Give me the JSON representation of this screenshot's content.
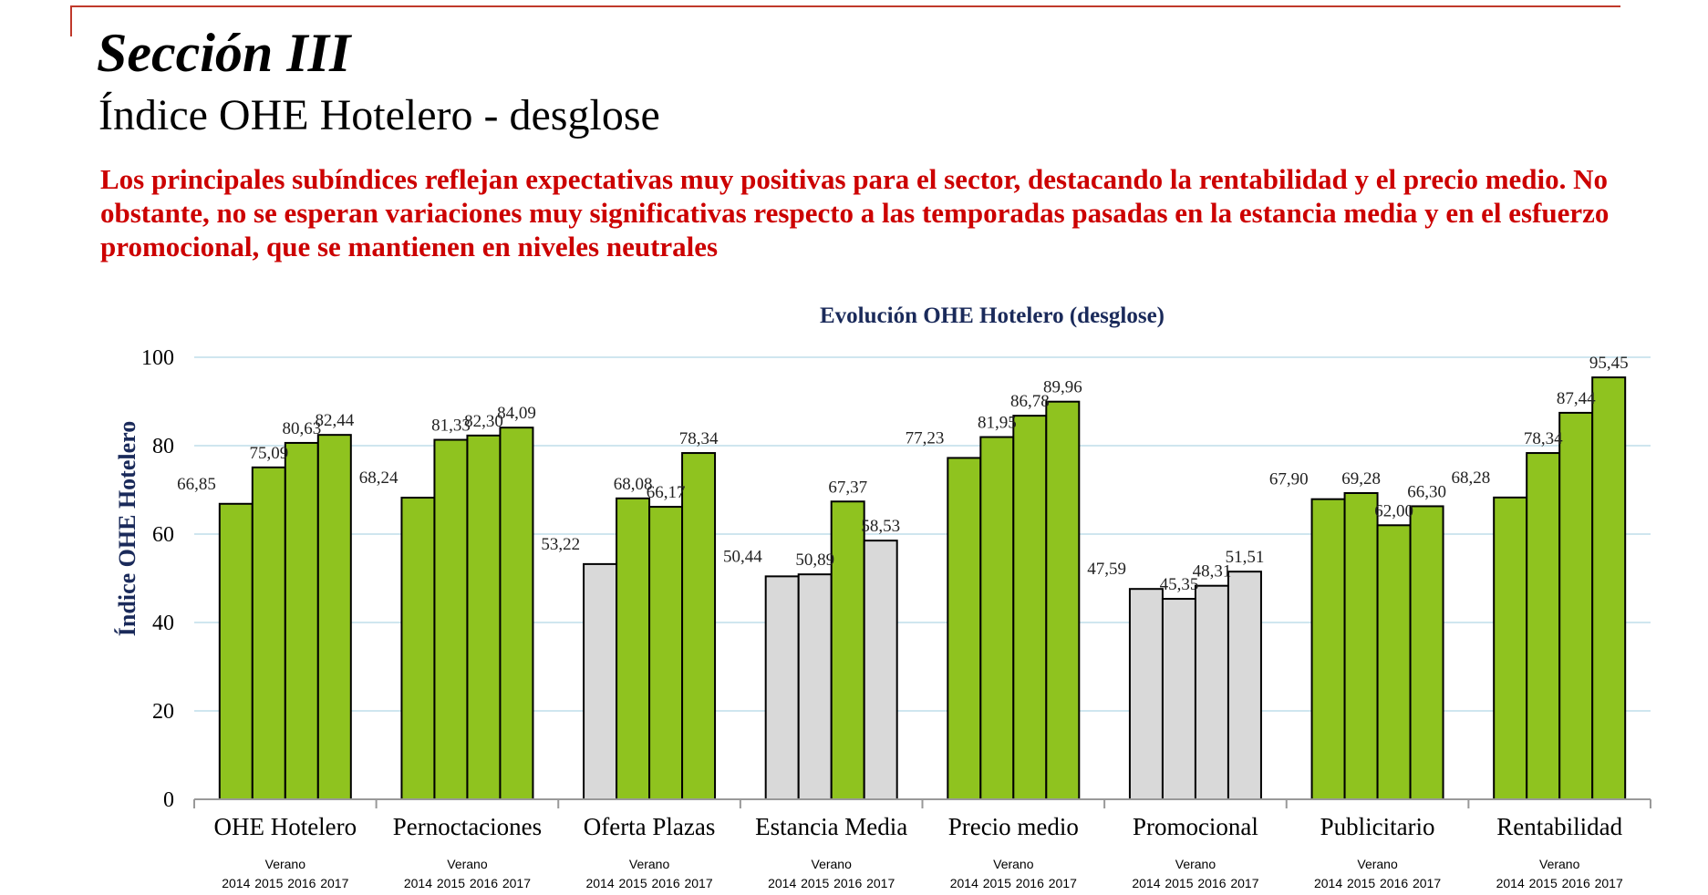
{
  "header": {
    "section": "Sección III",
    "subtitle": "Índice OHE Hotelero - desglose",
    "lead": "Los principales subíndices reflejan expectativas muy positivas para el sector, destacando la rentabilidad y el precio medio. No obstante, no se esperan variaciones muy significativas respecto a las temporadas pasadas en la estancia media y en el esfuerzo promocional, que se mantienen en niveles neutrales"
  },
  "chart_data": {
    "type": "bar",
    "title": "Evolución OHE Hotelero (desglose)",
    "ylabel": "Índice OHE Hotelero",
    "ylim": [
      0,
      100
    ],
    "yticks": [
      0,
      20,
      40,
      60,
      80,
      100
    ],
    "grid": true,
    "categories": [
      "OHE Hotelero",
      "Pernoctaciones",
      "Oferta Plazas",
      "Estancia Media",
      "Precio medio",
      "Promocional",
      "Publicitario",
      "Rentabilidad"
    ],
    "period_label": "Verano",
    "years": [
      "2014",
      "2015",
      "2016",
      "2017"
    ],
    "values": [
      [
        66.85,
        75.09,
        80.63,
        82.44
      ],
      [
        68.24,
        81.33,
        82.3,
        84.09
      ],
      [
        53.22,
        68.08,
        66.17,
        78.34
      ],
      [
        50.44,
        50.89,
        67.37,
        58.53
      ],
      [
        77.23,
        81.95,
        86.78,
        89.96
      ],
      [
        47.59,
        45.35,
        48.31,
        51.51
      ],
      [
        67.9,
        69.28,
        62.0,
        66.3
      ],
      [
        68.28,
        78.34,
        87.44,
        95.45
      ]
    ],
    "labels": [
      [
        "66,85",
        "75,09",
        "80,63",
        "82,44"
      ],
      [
        "68,24",
        "81,33",
        "82,30",
        "84,09"
      ],
      [
        "53,22",
        "68,08",
        "66,17",
        "78,34"
      ],
      [
        "50,44",
        "50,89",
        "67,37",
        "58,53"
      ],
      [
        "77,23",
        "81,95",
        "86,78",
        "89,96"
      ],
      [
        "47,59",
        "45,35",
        "48,31",
        "51,51"
      ],
      [
        "67,90",
        "69,28",
        "62,00",
        "66,30"
      ],
      [
        "68,28",
        "78,34",
        "87,44",
        "95,45"
      ]
    ],
    "neutral_threshold": 60,
    "colors": {
      "positive": "#8fc31f",
      "neutral": "#d9d9d9",
      "grid": "#cfe6ef",
      "axis": "#999999"
    }
  }
}
